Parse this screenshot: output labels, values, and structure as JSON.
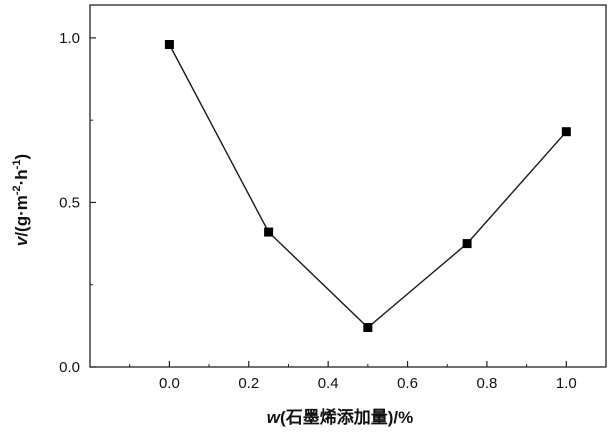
{
  "chart_data": {
    "type": "line",
    "markers": "square",
    "x": [
      0.0,
      0.25,
      0.5,
      0.75,
      1.0
    ],
    "series": [
      {
        "values": [
          0.98,
          0.41,
          0.12,
          0.375,
          0.715
        ]
      }
    ],
    "xlim": [
      -0.2,
      1.1
    ],
    "ylim": [
      0.0,
      1.1
    ],
    "xticks": [
      0.0,
      0.2,
      0.4,
      0.6,
      0.8,
      1.0
    ],
    "xtick_labels": [
      "0.0",
      "0.2",
      "0.4",
      "0.6",
      "0.8",
      "1.0"
    ],
    "yticks": [
      0.0,
      0.5,
      1.0
    ],
    "ytick_labels": [
      "0.0",
      "0.5",
      "1.0"
    ],
    "xlabel": "w(石墨烯添加量)/%",
    "xlabel_parts": {
      "var": "w",
      "rest": "(石墨烯添加量)/%"
    },
    "ylabel": "v/(g·m⁻²·h⁻¹)",
    "ylabel_parts": {
      "var": "v",
      "pre": "/(g·m",
      "exp1": "-2",
      "mid": "·h",
      "exp2": "-1",
      "post": ")"
    },
    "grid": false,
    "colors": {
      "line": "#1a1a1a",
      "marker": "#000000",
      "axis": "#222222"
    }
  }
}
